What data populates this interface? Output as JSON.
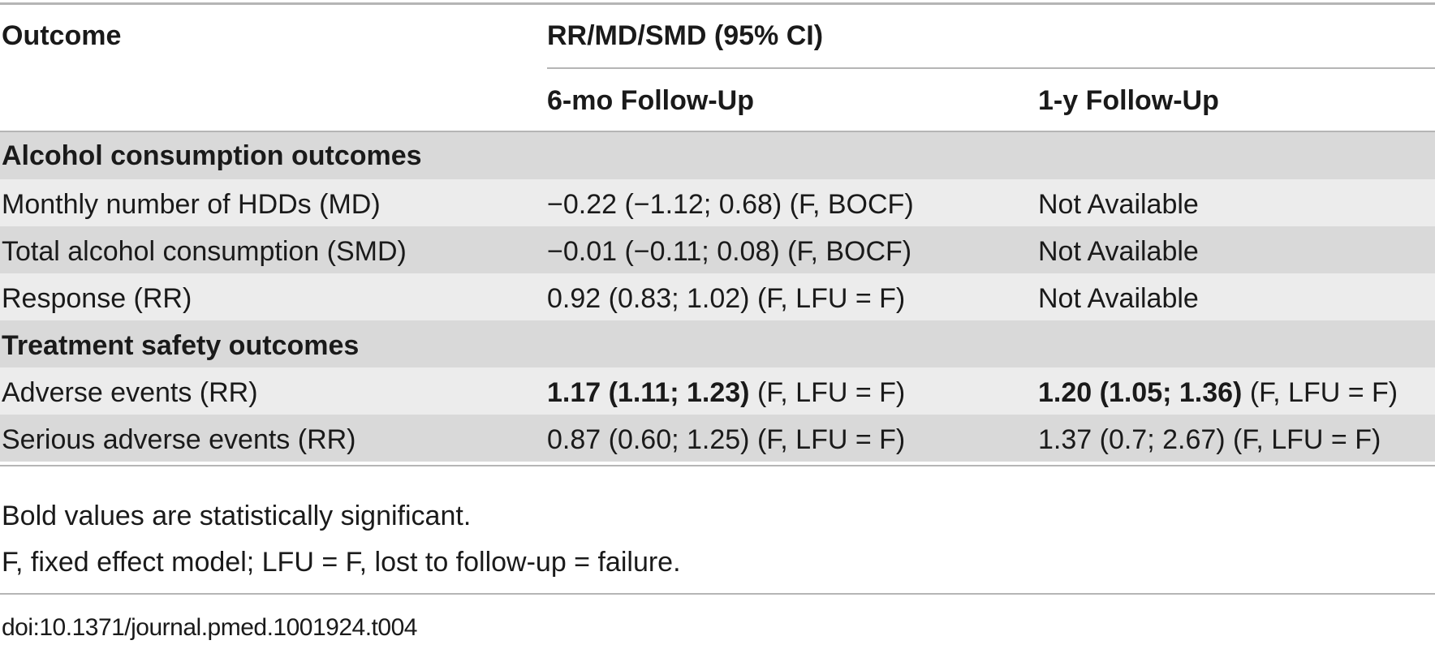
{
  "table": {
    "header": {
      "col_outcome": "Outcome",
      "col_group": "RR/MD/SMD (95% CI)",
      "col_6mo": "6-mo Follow-Up",
      "col_1y": "1-y Follow-Up"
    },
    "sections": [
      {
        "title": "Alcohol consumption outcomes",
        "rows": [
          {
            "outcome": "Monthly number of HDDs (MD)",
            "mo6_bold": "",
            "mo6_rest": "−0.22 (−1.12; 0.68) (F, BOCF)",
            "y1_bold": "",
            "y1_rest": "Not Available"
          },
          {
            "outcome": "Total alcohol consumption (SMD)",
            "mo6_bold": "",
            "mo6_rest": "−0.01 (−0.11; 0.08) (F, BOCF)",
            "y1_bold": "",
            "y1_rest": "Not Available"
          },
          {
            "outcome": "Response (RR)",
            "mo6_bold": "",
            "mo6_rest": "0.92 (0.83; 1.02) (F, LFU = F)",
            "y1_bold": "",
            "y1_rest": "Not Available"
          }
        ]
      },
      {
        "title": "Treatment safety outcomes",
        "rows": [
          {
            "outcome": "Adverse events (RR)",
            "mo6_bold": "1.17 (1.11; 1.23)",
            "mo6_rest": " (F, LFU = F)",
            "y1_bold": "1.20 (1.05; 1.36)",
            "y1_rest": " (F, LFU = F)"
          },
          {
            "outcome": "Serious adverse events (RR)",
            "mo6_bold": "",
            "mo6_rest": "0.87 (0.60; 1.25) (F, LFU = F)",
            "y1_bold": "",
            "y1_rest": "1.37 (0.7; 2.67) (F, LFU = F)"
          }
        ]
      }
    ]
  },
  "footnotes": {
    "note1": "Bold values are statistically significant.",
    "note2": "F, fixed effect model; LFU = F, lost to follow-up = failure."
  },
  "doi": "doi:10.1371/journal.pmed.1001924.t004"
}
